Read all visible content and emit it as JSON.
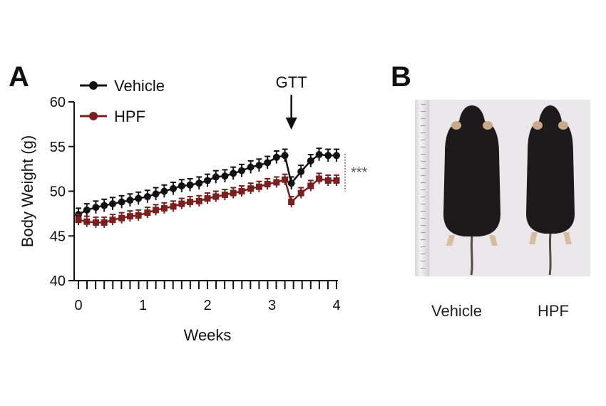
{
  "panels": {
    "a": "A",
    "b": "B"
  },
  "chart_data": {
    "type": "line",
    "xlabel": "Weeks",
    "ylabel": "Body Weight (g)",
    "ylim": [
      40,
      60
    ],
    "xlim": [
      0,
      4
    ],
    "xticks": [
      "0",
      "1",
      "2",
      "3",
      "4"
    ],
    "yticks": [
      "40",
      "45",
      "50",
      "55",
      "60"
    ],
    "annotation": {
      "label": "GTT",
      "x": 3.3
    },
    "significance": "***",
    "legend_position": "top-left",
    "series": [
      {
        "name": "Vehicle",
        "color": "#111111",
        "x": [
          0,
          0.13,
          0.27,
          0.4,
          0.53,
          0.67,
          0.8,
          0.93,
          1.07,
          1.2,
          1.33,
          1.47,
          1.6,
          1.73,
          1.87,
          2.0,
          2.13,
          2.27,
          2.4,
          2.53,
          2.67,
          2.8,
          2.93,
          3.07,
          3.2,
          3.3,
          3.45,
          3.6,
          3.73,
          3.87,
          4.0
        ],
        "y": [
          47.4,
          47.9,
          48.2,
          48.4,
          48.6,
          48.8,
          49.0,
          49.2,
          49.4,
          49.7,
          50.0,
          50.3,
          50.6,
          50.7,
          50.9,
          51.2,
          51.6,
          51.7,
          52.0,
          52.3,
          52.7,
          52.9,
          53.2,
          53.8,
          54.0,
          50.9,
          52.2,
          53.4,
          54.1,
          54.0,
          54.0
        ],
        "error": 0.7
      },
      {
        "name": "HPF",
        "color": "#7a1f1f",
        "x": [
          0,
          0.13,
          0.27,
          0.4,
          0.53,
          0.67,
          0.8,
          0.93,
          1.07,
          1.2,
          1.33,
          1.47,
          1.6,
          1.73,
          1.87,
          2.0,
          2.13,
          2.27,
          2.4,
          2.53,
          2.67,
          2.8,
          2.93,
          3.07,
          3.2,
          3.3,
          3.45,
          3.6,
          3.73,
          3.87,
          4.0
        ],
        "y": [
          46.8,
          46.6,
          46.5,
          46.5,
          46.8,
          47.0,
          47.2,
          47.3,
          47.6,
          47.9,
          48.1,
          48.3,
          48.6,
          48.8,
          48.9,
          49.2,
          49.4,
          49.6,
          49.8,
          50.0,
          50.3,
          50.5,
          50.8,
          51.0,
          51.3,
          48.8,
          49.8,
          50.6,
          51.4,
          51.2,
          51.2
        ],
        "error": 0.6
      }
    ]
  },
  "photo": {
    "labels": [
      "Vehicle",
      "HPF"
    ]
  }
}
